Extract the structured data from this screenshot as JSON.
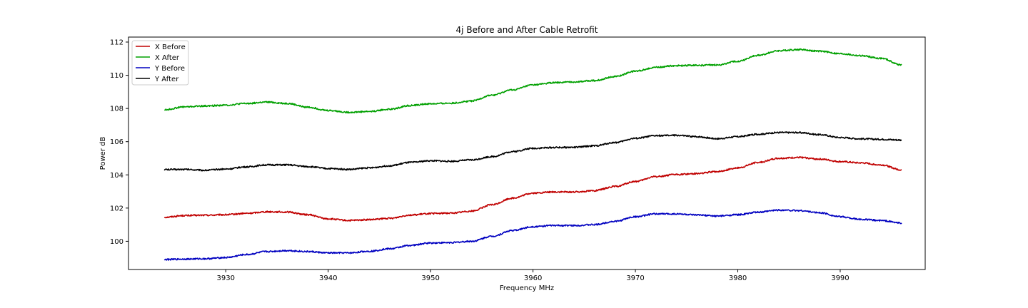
{
  "chart_data": {
    "type": "line",
    "title": "4j Before and After Cable Retrofit",
    "xlabel": "Frequency MHz",
    "ylabel": "Power dB",
    "xlim": [
      3920.5,
      3998.3
    ],
    "ylim": [
      98.3,
      112.3
    ],
    "xticks": [
      3930,
      3940,
      3950,
      3960,
      3970,
      3980,
      3990
    ],
    "yticks": [
      100,
      102,
      104,
      106,
      108,
      110,
      112
    ],
    "grid": false,
    "legend_position": "top-left",
    "series": [
      {
        "name": "X Before",
        "color": "#c00000",
        "x": [
          3924,
          3926,
          3928,
          3930,
          3932,
          3934,
          3936,
          3938,
          3940,
          3942,
          3944,
          3946,
          3948,
          3950,
          3952,
          3954,
          3956,
          3958,
          3960,
          3962,
          3964,
          3966,
          3968,
          3970,
          3972,
          3974,
          3976,
          3978,
          3980,
          3982,
          3984,
          3986,
          3988,
          3990,
          3992,
          3994,
          3996
        ],
        "y": [
          101.45,
          101.55,
          101.57,
          101.6,
          101.68,
          101.78,
          101.76,
          101.6,
          101.35,
          101.25,
          101.3,
          101.38,
          101.58,
          101.67,
          101.7,
          101.82,
          102.2,
          102.6,
          102.9,
          102.97,
          102.97,
          103.05,
          103.3,
          103.6,
          103.9,
          104.02,
          104.08,
          104.2,
          104.42,
          104.75,
          105.0,
          105.05,
          104.95,
          104.8,
          104.72,
          104.6,
          104.3
        ]
      },
      {
        "name": "X After",
        "color": "#00a000",
        "x": [
          3924,
          3926,
          3928,
          3930,
          3932,
          3934,
          3936,
          3938,
          3940,
          3942,
          3944,
          3946,
          3948,
          3950,
          3952,
          3954,
          3956,
          3958,
          3960,
          3962,
          3964,
          3966,
          3968,
          3970,
          3972,
          3974,
          3976,
          3978,
          3980,
          3982,
          3984,
          3986,
          3988,
          3990,
          3992,
          3994,
          3996
        ],
        "y": [
          107.92,
          108.1,
          108.15,
          108.2,
          108.3,
          108.38,
          108.3,
          108.08,
          107.88,
          107.77,
          107.82,
          107.95,
          108.18,
          108.28,
          108.32,
          108.45,
          108.8,
          109.12,
          109.42,
          109.55,
          109.6,
          109.68,
          109.92,
          110.25,
          110.48,
          110.58,
          110.6,
          110.62,
          110.85,
          111.2,
          111.48,
          111.55,
          111.45,
          111.3,
          111.18,
          111.02,
          110.62
        ]
      },
      {
        "name": "Y Before",
        "color": "#0000c0",
        "x": [
          3924,
          3926,
          3928,
          3930,
          3932,
          3934,
          3936,
          3938,
          3940,
          3942,
          3944,
          3946,
          3948,
          3950,
          3952,
          3954,
          3956,
          3958,
          3960,
          3962,
          3964,
          3966,
          3968,
          3970,
          3972,
          3974,
          3976,
          3978,
          3980,
          3982,
          3984,
          3986,
          3988,
          3990,
          3992,
          3994,
          3996
        ],
        "y": [
          98.9,
          98.93,
          98.95,
          99.02,
          99.2,
          99.38,
          99.44,
          99.38,
          99.3,
          99.3,
          99.4,
          99.55,
          99.75,
          99.9,
          99.92,
          100.0,
          100.3,
          100.65,
          100.88,
          100.95,
          100.95,
          101.0,
          101.2,
          101.48,
          101.65,
          101.65,
          101.58,
          101.52,
          101.6,
          101.75,
          101.88,
          101.85,
          101.72,
          101.48,
          101.32,
          101.25,
          101.1
        ]
      },
      {
        "name": "Y After",
        "color": "#000000",
        "x": [
          3924,
          3926,
          3928,
          3930,
          3932,
          3934,
          3936,
          3938,
          3940,
          3942,
          3944,
          3946,
          3948,
          3950,
          3952,
          3954,
          3956,
          3958,
          3960,
          3962,
          3964,
          3966,
          3968,
          3970,
          3972,
          3974,
          3976,
          3978,
          3980,
          3982,
          3984,
          3986,
          3988,
          3990,
          3992,
          3994,
          3996
        ],
        "y": [
          104.32,
          104.33,
          104.28,
          104.35,
          104.48,
          104.6,
          104.6,
          104.5,
          104.38,
          104.33,
          104.42,
          104.55,
          104.75,
          104.85,
          104.82,
          104.9,
          105.1,
          105.4,
          105.6,
          105.65,
          105.66,
          105.75,
          105.95,
          106.2,
          106.36,
          106.38,
          106.3,
          106.18,
          106.3,
          106.45,
          106.55,
          106.55,
          106.42,
          106.25,
          106.17,
          106.14,
          106.1
        ]
      }
    ]
  }
}
